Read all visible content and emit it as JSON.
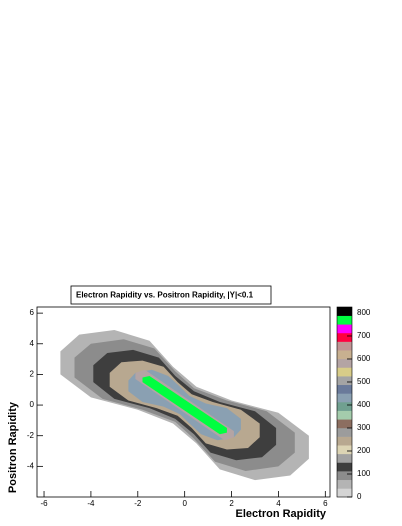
{
  "chart_data": {
    "type": "contour",
    "title": "Electron Rapidity vs. Positron Rapidity, |Y|<0.1",
    "x_label": "Electron Rapidity",
    "y_label": "Positron Rapidity",
    "xlim": [
      -6.3,
      6.2
    ],
    "ylim": [
      -6,
      6.4
    ],
    "xticks": [
      -6,
      -4,
      -2,
      0,
      2,
      4,
      6
    ],
    "yticks": [
      -4,
      -2,
      0,
      2,
      4,
      6
    ],
    "zlim": [
      0,
      826
    ],
    "zticks": [
      0,
      100,
      200,
      300,
      400,
      500,
      600,
      700,
      800
    ],
    "palette": [
      "#d4d4d4",
      "#b4b4b4",
      "#8c8c8c",
      "#3e3e3e",
      "#a2a2a2",
      "#dcd4b4",
      "#b8a890",
      "#9c9c9c",
      "#8c6e60",
      "#a4ccac",
      "#70a090",
      "#8aa0b2",
      "#6a7a9a",
      "#a4a4a4",
      "#d8cc88",
      "#b4a4a4",
      "#c8b090",
      "#c09494",
      "#ff0040",
      "#ff00ff",
      "#00ff40",
      "#000000"
    ],
    "contours": [
      {
        "level": 40,
        "x": [
          -5.3,
          -4.5,
          -3,
          -1.5,
          -0.5,
          0.5,
          2,
          4,
          5.3,
          5.3,
          4.5,
          3,
          1.5,
          0.5,
          -0.5,
          -2,
          -4,
          -5.3
        ],
        "y": [
          3.5,
          4.6,
          4.9,
          4.2,
          2.5,
          1.2,
          0.3,
          -0.5,
          -2,
          -3.5,
          -4.6,
          -4.9,
          -4.2,
          -2.5,
          -1.2,
          -0.3,
          0.5,
          2
        ]
      },
      {
        "level": 80,
        "x": [
          -4.7,
          -4,
          -2.6,
          -1.3,
          -0.4,
          0.4,
          1.8,
          3.5,
          4.7,
          4.7,
          4,
          2.6,
          1.3,
          0.4,
          -0.4,
          -1.8,
          -3.5,
          -4.7
        ],
        "y": [
          3.1,
          4,
          4.3,
          3.7,
          2.2,
          1.1,
          0.3,
          -0.4,
          -1.8,
          -3.1,
          -4,
          -4.3,
          -3.7,
          -2.2,
          -1.1,
          -0.3,
          0.4,
          1.8
        ]
      },
      {
        "level": 130,
        "x": [
          -3.9,
          -3.3,
          -2.2,
          -1.1,
          -0.4,
          0.4,
          1.5,
          3,
          3.9,
          3.9,
          3.3,
          2.2,
          1.1,
          0.4,
          -0.4,
          -1.5,
          -3,
          -3.9
        ],
        "y": [
          2.6,
          3.4,
          3.6,
          3.1,
          1.9,
          0.9,
          0.2,
          -0.4,
          -1.5,
          -2.6,
          -3.4,
          -3.6,
          -3.1,
          -1.9,
          -0.9,
          -0.2,
          0.4,
          1.5
        ]
      },
      {
        "level": 230,
        "x": [
          -3.2,
          -2.7,
          -1.8,
          -0.9,
          -0.3,
          0.3,
          1.2,
          2.4,
          3.2,
          3.2,
          2.7,
          1.8,
          0.9,
          0.3,
          -0.3,
          -1.2,
          -2.4,
          -3.2
        ],
        "y": [
          2.1,
          2.8,
          2.9,
          2.5,
          1.5,
          0.7,
          0.2,
          -0.3,
          -1.2,
          -2.1,
          -2.8,
          -2.9,
          -2.5,
          -1.5,
          -0.7,
          -0.2,
          0.3,
          1.2
        ]
      },
      {
        "level": 420,
        "x": [
          -2.4,
          -2.1,
          -1.4,
          -0.7,
          -0.2,
          0.2,
          0.9,
          1.8,
          2.4,
          2.4,
          2.1,
          1.4,
          0.7,
          0.2,
          -0.2,
          -0.9,
          -1.8,
          -2.4
        ],
        "y": [
          1.6,
          2.1,
          2.3,
          1.9,
          1.2,
          0.6,
          0.1,
          -0.2,
          -0.9,
          -1.6,
          -2.1,
          -2.3,
          -1.9,
          -1.2,
          -0.6,
          -0.1,
          0.2,
          0.9
        ]
      },
      {
        "level": 590,
        "x": [
          -2.1,
          -1.7,
          2.1,
          2.1,
          1.7,
          -2.1
        ],
        "y": [
          2.1,
          2.3,
          -1.7,
          -2.1,
          -2.3,
          1.7
        ]
      },
      {
        "level": 760,
        "x": [
          -1.8,
          -1.5,
          1.8,
          1.8,
          1.5,
          -1.8
        ],
        "y": [
          1.8,
          1.9,
          -1.5,
          -1.8,
          -1.9,
          1.5
        ]
      }
    ]
  }
}
